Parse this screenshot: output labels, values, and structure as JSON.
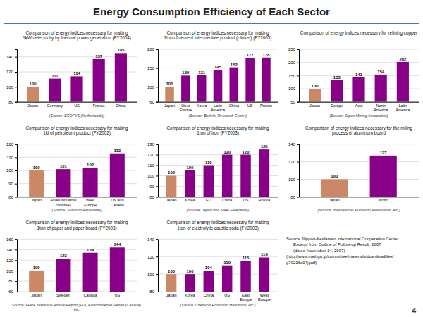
{
  "title": "Energy Consumption Efficiency of Each Sector",
  "annotations": [
    "Source: Nippon-Keidanren International Cooperation Center\n      Excerpt from Outline of Follow-up Result, 2007\n      (dated November 14, 2007)\n(http://www.meti.go.jp/committee/materials/downloadfiles/\ng70216a04j.pdf)",
    "4"
  ],
  "chart_data": [
    {
      "type": "bar",
      "title": "Comparison of energy indices necessary for making\n1kWh electricity by thermal power generation (FY2004)",
      "annotations": [
        "(Source: ECOFYS (Netherlands))"
      ],
      "categories": [
        "Japan",
        "Germany",
        "US",
        "France",
        "China"
      ],
      "values": [
        100,
        111,
        114,
        137,
        145
      ],
      "colors": [
        "#cc8866",
        "#880088",
        "#880088",
        "#880088",
        "#880088"
      ],
      "ylim": [
        80,
        150
      ],
      "yticks": [
        80,
        100,
        120,
        140
      ],
      "grid": true,
      "data_labels": true
    },
    {
      "type": "bar",
      "title": "Comparison of energy indices necessary for making\n1ton of cement intermediate product (clinker) (FY2003)",
      "annotations": [
        "(Source: Battelle Research Center)"
      ],
      "categories": [
        "Japan",
        "West\nEurope",
        "Korea",
        "Latin\nAmerica",
        "China",
        "US",
        "Russia"
      ],
      "values": [
        100,
        130,
        131,
        145,
        152,
        177,
        178
      ],
      "colors": [
        "#cc8866",
        "#880088",
        "#880088",
        "#880088",
        "#880088",
        "#880088",
        "#880088"
      ],
      "ylim": [
        60,
        200
      ],
      "yticks": [
        60,
        100,
        150,
        200
      ],
      "grid": true,
      "data_labels": true
    },
    {
      "type": "bar",
      "title": "Comparison of energy indices necessary for refining copper",
      "annotations": [
        "(Source: Japan Mining Association)"
      ],
      "categories": [
        "Japan",
        "Europe",
        "Asia",
        "North\nAmerica",
        "Latin\nAmerica"
      ],
      "values": [
        100,
        133,
        143,
        154,
        202
      ],
      "colors": [
        "#cc8866",
        "#880088",
        "#880088",
        "#880088",
        "#880088"
      ],
      "ylim": [
        50,
        250
      ],
      "yticks": [
        50,
        100,
        150,
        200,
        250
      ],
      "grid": true,
      "data_labels": true
    },
    {
      "type": "bar",
      "title": "Comparison of energy indices necessary for making\n1kl of petroleum product (FY2002)",
      "annotations": [
        "(Source: Solomon Associates)"
      ],
      "categories": [
        "Japan",
        "Asian industrial\ncountries",
        "West\nEurope",
        "US and\nCanada"
      ],
      "values": [
        100,
        101,
        102,
        113
      ],
      "colors": [
        "#cc8866",
        "#880088",
        "#880088",
        "#880088"
      ],
      "ylim": [
        80,
        120
      ],
      "yticks": [
        80,
        90,
        100,
        110,
        120
      ],
      "grid": true,
      "data_labels": true
    },
    {
      "type": "bar",
      "title": "Comparison of energy indices necessary for making\n1ton of iron (FY2003)",
      "annotations": [
        "(Source: Japan Iron Steel Federation)"
      ],
      "categories": [
        "Japan",
        "Korea",
        "EU",
        "China",
        "US",
        "Russia"
      ],
      "values": [
        100,
        105,
        110,
        120,
        120,
        125
      ],
      "colors": [
        "#cc8866",
        "#880088",
        "#880088",
        "#880088",
        "#880088",
        "#880088"
      ],
      "ylim": [
        80,
        130
      ],
      "yticks": [
        80,
        90,
        100,
        110,
        120,
        130
      ],
      "grid": true,
      "data_labels": true
    },
    {
      "type": "bar",
      "title": "Comparison of energy indices necessary for the rolling\nprocess of aluminum board",
      "annotations": [
        "(Source: International Aluminum Association, etc.)"
      ],
      "categories": [
        "Japan",
        "World"
      ],
      "values": [
        100,
        127
      ],
      "colors": [
        "#cc8866",
        "#880088"
      ],
      "ylim": [
        80,
        140
      ],
      "yticks": [
        80,
        100,
        120,
        140
      ],
      "grid": true,
      "data_labels": true
    },
    {
      "type": "bar",
      "title": "Comparison of energy indices necessary for making\n1ton of paper and paper board (FY2003)",
      "annotations": [
        "Source: APPE Statistical Annual Report (EU), Environmental Report (Canada), etc."
      ],
      "categories": [
        "Japan",
        "Sweden",
        "Canada",
        "US"
      ],
      "values": [
        100,
        123,
        134,
        144
      ],
      "colors": [
        "#cc8866",
        "#880088",
        "#880088",
        "#880088"
      ],
      "ylim": [
        60,
        160
      ],
      "yticks": [
        60,
        80,
        100,
        120,
        140,
        160
      ],
      "grid": true,
      "data_labels": true
    },
    {
      "type": "bar",
      "title": "Comparison of energy indices necessary for making\n1ton of electrolytic caustic soda (FY2003)",
      "annotations": [
        "(Source: Chemical Economic Handbook, etc.)"
      ],
      "categories": [
        "Japan",
        "Korea",
        "China",
        "US",
        "East\nEurope",
        "West\nEurope"
      ],
      "values": [
        100,
        100,
        104,
        110,
        115,
        119
      ],
      "colors": [
        "#cc8866",
        "#880088",
        "#880088",
        "#880088",
        "#880088",
        "#880088"
      ],
      "ylim": [
        80,
        140
      ],
      "yticks": [
        80,
        100,
        120,
        140
      ],
      "grid": true,
      "data_labels": true
    }
  ]
}
